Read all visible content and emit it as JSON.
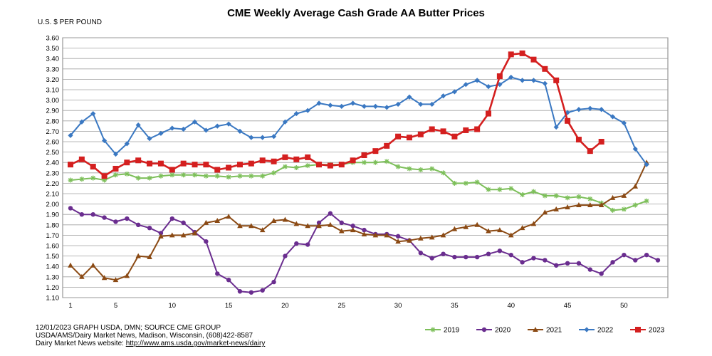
{
  "chart_data": {
    "type": "line",
    "title": "CME Weekly Average Cash Grade AA Butter Prices",
    "ylabel": "U.S. $ PER POUND",
    "xlabel": "",
    "ylim": [
      1.1,
      3.6
    ],
    "ystep": 0.1,
    "xlim": [
      1,
      53
    ],
    "xticks": [
      1,
      5,
      10,
      15,
      20,
      25,
      30,
      35,
      40,
      45,
      50
    ],
    "grid": true,
    "legend_position": "bottom-right",
    "series": [
      {
        "name": "2019",
        "color": "#7dbf5a",
        "marker": "star",
        "values": [
          2.23,
          2.24,
          2.25,
          2.23,
          2.28,
          2.29,
          2.25,
          2.25,
          2.27,
          2.28,
          2.28,
          2.28,
          2.27,
          2.27,
          2.26,
          2.27,
          2.27,
          2.27,
          2.3,
          2.36,
          2.35,
          2.37,
          2.38,
          2.38,
          2.38,
          2.4,
          2.4,
          2.4,
          2.41,
          2.36,
          2.34,
          2.33,
          2.34,
          2.3,
          2.2,
          2.2,
          2.21,
          2.14,
          2.14,
          2.15,
          2.09,
          2.12,
          2.08,
          2.08,
          2.06,
          2.07,
          2.05,
          2.01,
          1.94,
          1.95,
          1.99,
          2.03
        ]
      },
      {
        "name": "2020",
        "color": "#6a2d8f",
        "marker": "circle",
        "values": [
          1.96,
          1.9,
          1.9,
          1.87,
          1.83,
          1.86,
          1.8,
          1.77,
          1.72,
          1.86,
          1.82,
          1.73,
          1.64,
          1.33,
          1.27,
          1.16,
          1.15,
          1.17,
          1.25,
          1.5,
          1.62,
          1.61,
          1.82,
          1.91,
          1.82,
          1.79,
          1.75,
          1.71,
          1.71,
          1.69,
          1.65,
          1.53,
          1.48,
          1.52,
          1.49,
          1.49,
          1.49,
          1.52,
          1.55,
          1.51,
          1.44,
          1.48,
          1.46,
          1.41,
          1.43,
          1.43,
          1.37,
          1.33,
          1.44,
          1.51,
          1.46,
          1.51,
          1.46
        ]
      },
      {
        "name": "2021",
        "color": "#8b4a14",
        "marker": "triangle",
        "values": [
          1.41,
          1.3,
          1.41,
          1.29,
          1.27,
          1.31,
          1.5,
          1.49,
          1.69,
          1.7,
          1.7,
          1.72,
          1.82,
          1.84,
          1.88,
          1.79,
          1.79,
          1.75,
          1.84,
          1.85,
          1.81,
          1.79,
          1.79,
          1.8,
          1.74,
          1.75,
          1.71,
          1.7,
          1.7,
          1.64,
          1.65,
          1.67,
          1.68,
          1.7,
          1.76,
          1.78,
          1.8,
          1.74,
          1.75,
          1.7,
          1.77,
          1.81,
          1.92,
          1.95,
          1.97,
          1.99,
          1.99,
          1.99,
          2.06,
          2.08,
          2.17,
          2.4
        ]
      },
      {
        "name": "2022",
        "color": "#3a78c2",
        "marker": "diamond",
        "values": [
          2.66,
          2.79,
          2.87,
          2.61,
          2.48,
          2.58,
          2.76,
          2.63,
          2.68,
          2.73,
          2.72,
          2.79,
          2.71,
          2.75,
          2.77,
          2.7,
          2.64,
          2.64,
          2.65,
          2.79,
          2.87,
          2.9,
          2.97,
          2.95,
          2.94,
          2.97,
          2.94,
          2.94,
          2.93,
          2.96,
          3.03,
          2.96,
          2.96,
          3.04,
          3.08,
          3.15,
          3.19,
          3.13,
          3.15,
          3.22,
          3.19,
          3.19,
          3.16,
          2.74,
          2.88,
          2.91,
          2.92,
          2.91,
          2.84,
          2.78,
          2.53,
          2.38
        ]
      },
      {
        "name": "2023",
        "color": "#d41f1f",
        "marker": "square",
        "values": [
          2.38,
          2.43,
          2.36,
          2.27,
          2.34,
          2.4,
          2.42,
          2.39,
          2.39,
          2.33,
          2.39,
          2.38,
          2.38,
          2.33,
          2.35,
          2.38,
          2.39,
          2.42,
          2.41,
          2.45,
          2.43,
          2.45,
          2.38,
          2.37,
          2.38,
          2.42,
          2.47,
          2.51,
          2.56,
          2.65,
          2.64,
          2.67,
          2.72,
          2.7,
          2.65,
          2.71,
          2.72,
          2.87,
          3.23,
          3.44,
          3.45,
          3.39,
          3.3,
          3.19,
          2.8,
          2.62,
          2.51,
          2.6
        ]
      }
    ]
  },
  "footer": {
    "line1": "12/01/2023 GRAPH USDA, DMN; SOURCE CME GROUP",
    "line2": "USDA/AMS/Dairy Market News, Madison, Wisconsin, (608)422-8587",
    "line3_prefix": "Dairy Market News website: ",
    "line3_link": "http://www.ams.usda.gov/market-news/dairy"
  }
}
